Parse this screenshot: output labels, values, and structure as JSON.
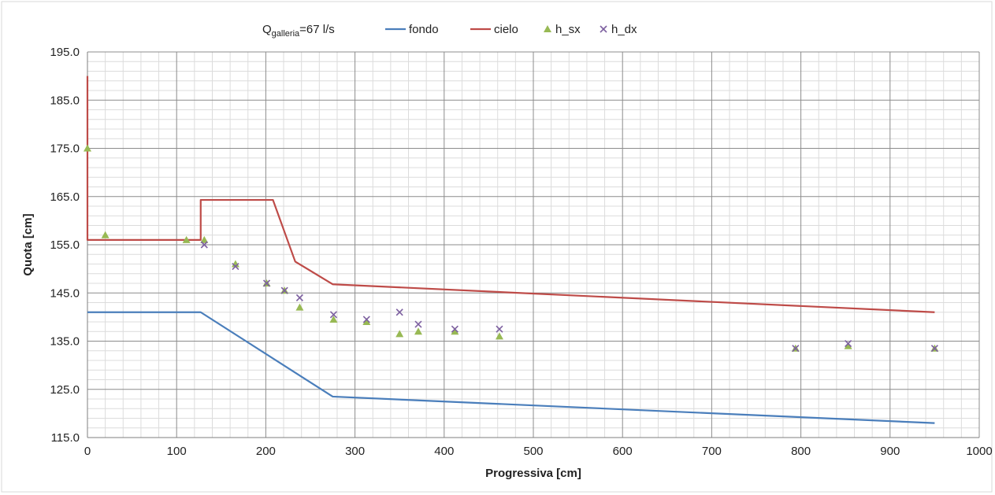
{
  "chart_data": {
    "type": "line",
    "title": "",
    "annotation": {
      "prefix": "Q",
      "subscript": "galleria",
      "suffix": "=67 l/s"
    },
    "xlabel": "Progressiva [cm]",
    "ylabel": "Quota [cm]",
    "xlim": [
      0,
      1000
    ],
    "ylim": [
      115,
      195
    ],
    "x_ticks": [
      0,
      100,
      200,
      300,
      400,
      500,
      600,
      700,
      800,
      900,
      1000
    ],
    "y_ticks": [
      115.0,
      125.0,
      135.0,
      145.0,
      155.0,
      165.0,
      175.0,
      185.0,
      195.0
    ],
    "x_tick_labels": [
      "0",
      "100",
      "200",
      "300",
      "400",
      "500",
      "600",
      "700",
      "800",
      "900",
      "1000"
    ],
    "y_tick_labels": [
      "115.0",
      "125.0",
      "135.0",
      "145.0",
      "155.0",
      "165.0",
      "175.0",
      "185.0",
      "195.0"
    ],
    "grid": true,
    "legend_position": "top",
    "series": [
      {
        "name": "fondo",
        "kind": "line",
        "color": "#4a7ebb",
        "x": [
          0,
          127,
          275,
          950
        ],
        "y": [
          141,
          141,
          123.5,
          118
        ]
      },
      {
        "name": "cielo",
        "kind": "line",
        "color": "#be4b48",
        "x": [
          0,
          0,
          0,
          127,
          127,
          208,
          233,
          275,
          950
        ],
        "y": [
          190,
          156,
          156,
          156,
          164.3,
          164.3,
          151.5,
          146.8,
          141
        ]
      },
      {
        "name": "h_sx",
        "kind": "triangle",
        "color": "#98b954",
        "x": [
          0,
          20,
          111,
          131,
          166,
          201,
          221,
          238,
          276,
          313,
          350,
          371,
          412,
          462,
          794,
          853,
          950
        ],
        "y": [
          175,
          157,
          156,
          156,
          151,
          147,
          145.5,
          142,
          139.5,
          139,
          136.5,
          137,
          137,
          136,
          133.5,
          134,
          133.5
        ]
      },
      {
        "name": "h_dx",
        "kind": "cross",
        "color": "#7d60a0",
        "x": [
          131,
          166,
          201,
          221,
          238,
          276,
          313,
          350,
          371,
          412,
          462,
          794,
          853,
          950
        ],
        "y": [
          155,
          150.5,
          147,
          145.5,
          144,
          140.5,
          139.5,
          141,
          138.5,
          137.5,
          137.5,
          133.5,
          134.5,
          133.5
        ]
      }
    ]
  }
}
